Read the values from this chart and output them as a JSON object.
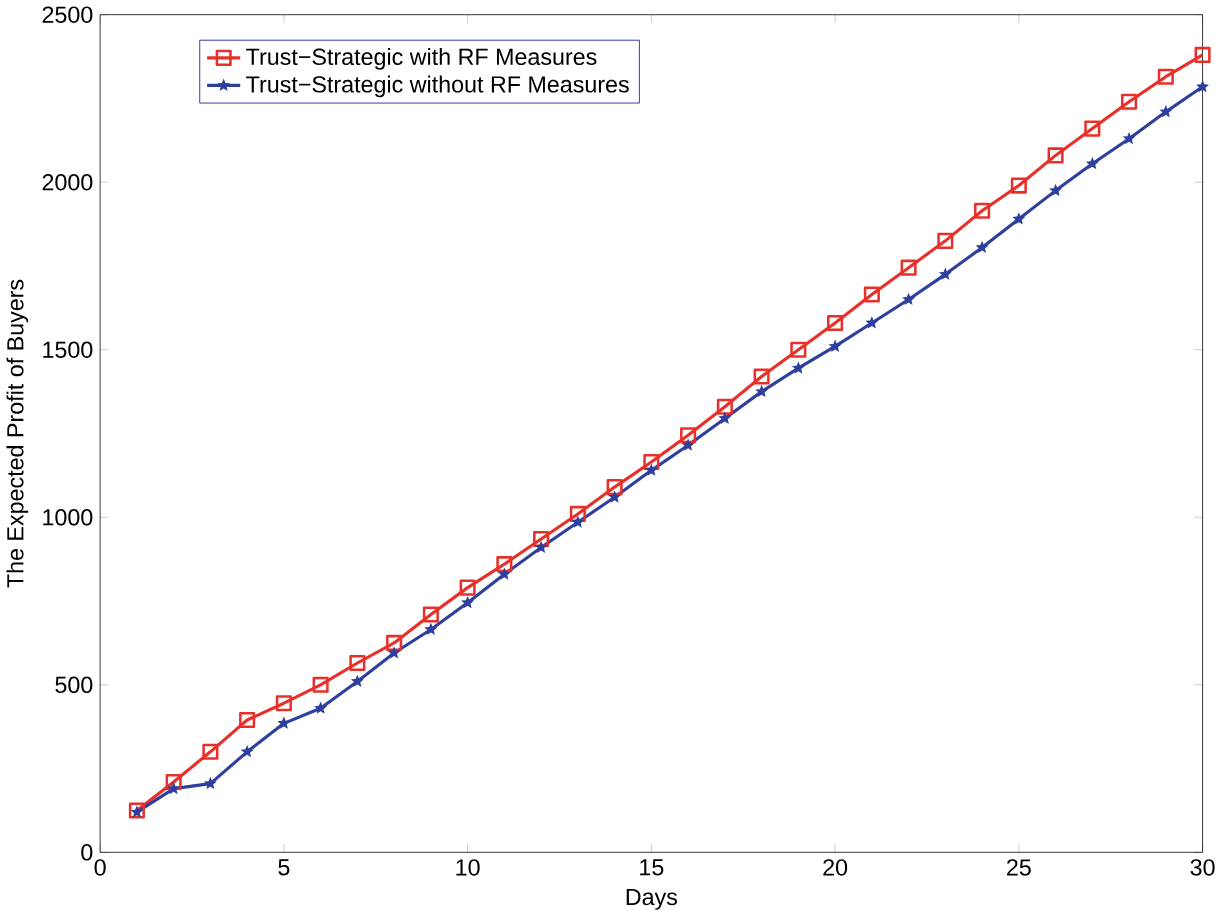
{
  "chart_data": {
    "type": "line",
    "xlabel": "Days",
    "ylabel": "The Expected Profit of Buyers",
    "x": [
      1,
      2,
      3,
      4,
      5,
      6,
      7,
      8,
      9,
      10,
      11,
      12,
      13,
      14,
      15,
      16,
      17,
      18,
      19,
      20,
      21,
      22,
      23,
      24,
      25,
      26,
      27,
      28,
      29,
      30
    ],
    "series": [
      {
        "name": "Trust−Strategic with RF Measures",
        "color": "#e8302a",
        "marker": "square",
        "values": [
          125,
          210,
          300,
          395,
          445,
          500,
          565,
          625,
          710,
          790,
          860,
          935,
          1010,
          1090,
          1165,
          1245,
          1330,
          1420,
          1500,
          1580,
          1665,
          1745,
          1825,
          1915,
          1990,
          2080,
          2160,
          2240,
          2315,
          2380
        ]
      },
      {
        "name": "Trust−Strategic without RF Measures",
        "color": "#2e3f9e",
        "marker": "star",
        "values": [
          120,
          190,
          205,
          300,
          385,
          430,
          510,
          595,
          665,
          745,
          830,
          910,
          985,
          1060,
          1140,
          1215,
          1295,
          1375,
          1445,
          1510,
          1580,
          1650,
          1725,
          1805,
          1890,
          1975,
          2055,
          2130,
          2210,
          2285
        ]
      }
    ],
    "xlim": [
      0,
      30
    ],
    "xticks": [
      0,
      5,
      10,
      15,
      20,
      25,
      30
    ],
    "ylim": [
      0,
      2500
    ],
    "yticks": [
      0,
      500,
      1000,
      1500,
      2000,
      2500
    ],
    "grid": false,
    "legend": "top left",
    "line_style": "solid"
  }
}
